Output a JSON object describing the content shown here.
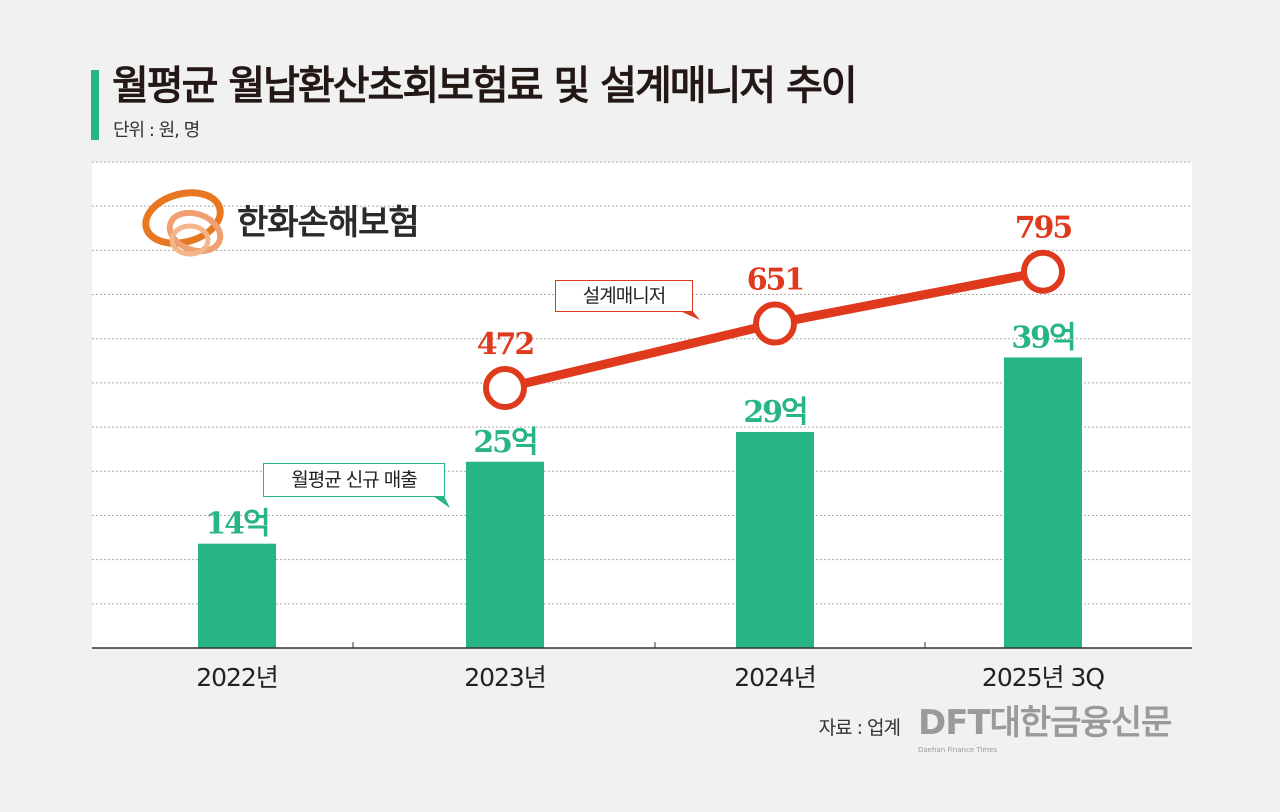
{
  "header": {
    "title": "월평균 월납환산초회보험료 및 설계매니저 추이",
    "unit": "단위 : 원, 명"
  },
  "logo": {
    "text": "한화손해보험",
    "color": "#e87722"
  },
  "annotations": {
    "line_label": "설계매니저",
    "bar_label": "월평균 신규 매출"
  },
  "footer": {
    "source": "자료 : 업계",
    "brand": "DFT대한금융신문",
    "brand_sub": "Daehan Finance Times"
  },
  "colors": {
    "bar": "#27b487",
    "line": "#e03a1e",
    "grid": "#aaaaaa"
  },
  "chart_data": {
    "type": "bar+line",
    "categories": [
      "2022년",
      "2023년",
      "2024년",
      "2025년 3Q"
    ],
    "series": [
      {
        "name": "월평균 신규 매출",
        "type": "bar",
        "values": [
          14,
          25,
          29,
          39
        ],
        "labels": [
          "14억",
          "25억",
          "29억",
          "39억"
        ]
      },
      {
        "name": "설계매니저",
        "type": "line",
        "values": [
          null,
          472,
          651,
          795
        ],
        "labels": [
          "",
          "472",
          "651",
          "795"
        ]
      }
    ],
    "grid": true,
    "legend": "none"
  }
}
